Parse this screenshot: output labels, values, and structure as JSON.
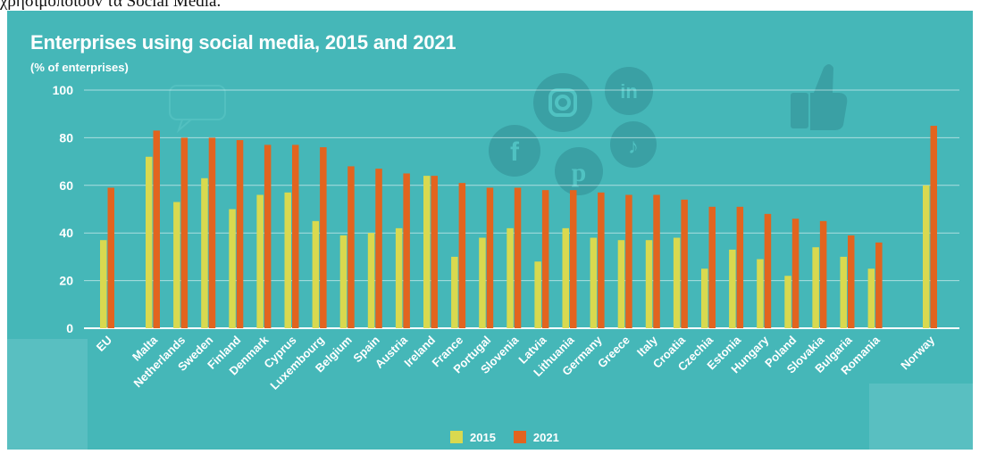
{
  "page": {
    "top_text": "χρησιμοποιούν τα Social Media."
  },
  "chart_data": {
    "type": "bar",
    "title": "Enterprises using social media, 2015 and 2021",
    "subtitle": "(% of enterprises)",
    "xlabel": "",
    "ylabel": "",
    "ylim": [
      0,
      100
    ],
    "yticks": [
      0,
      20,
      40,
      60,
      80,
      100
    ],
    "grid": true,
    "legend_placement": "bottom-center",
    "categories": [
      "EU",
      "Malta",
      "Netherlands",
      "Sweden",
      "Finland",
      "Denmark",
      "Cyprus",
      "Luxembourg",
      "Belgium",
      "Spain",
      "Austria",
      "Ireland",
      "France",
      "Portugal",
      "Slovenia",
      "Latvia",
      "Lithuania",
      "Germany",
      "Greece",
      "Italy",
      "Croatia",
      "Czechia",
      "Estonia",
      "Hungary",
      "Poland",
      "Slovakia",
      "Bulgaria",
      "Romania",
      "Norway"
    ],
    "series": [
      {
        "name": "2015",
        "color": "#d9d94f",
        "values": [
          37,
          72,
          53,
          63,
          50,
          56,
          57,
          45,
          39,
          40,
          42,
          64,
          30,
          38,
          42,
          28,
          42,
          38,
          37,
          37,
          38,
          25,
          33,
          29,
          22,
          34,
          30,
          25,
          60
        ]
      },
      {
        "name": "2021",
        "color": "#e2641f",
        "values": [
          59,
          83,
          80,
          80,
          79,
          77,
          77,
          76,
          68,
          67,
          65,
          64,
          61,
          59,
          59,
          58,
          58,
          57,
          56,
          56,
          54,
          51,
          51,
          48,
          46,
          45,
          39,
          36,
          85
        ]
      }
    ]
  }
}
